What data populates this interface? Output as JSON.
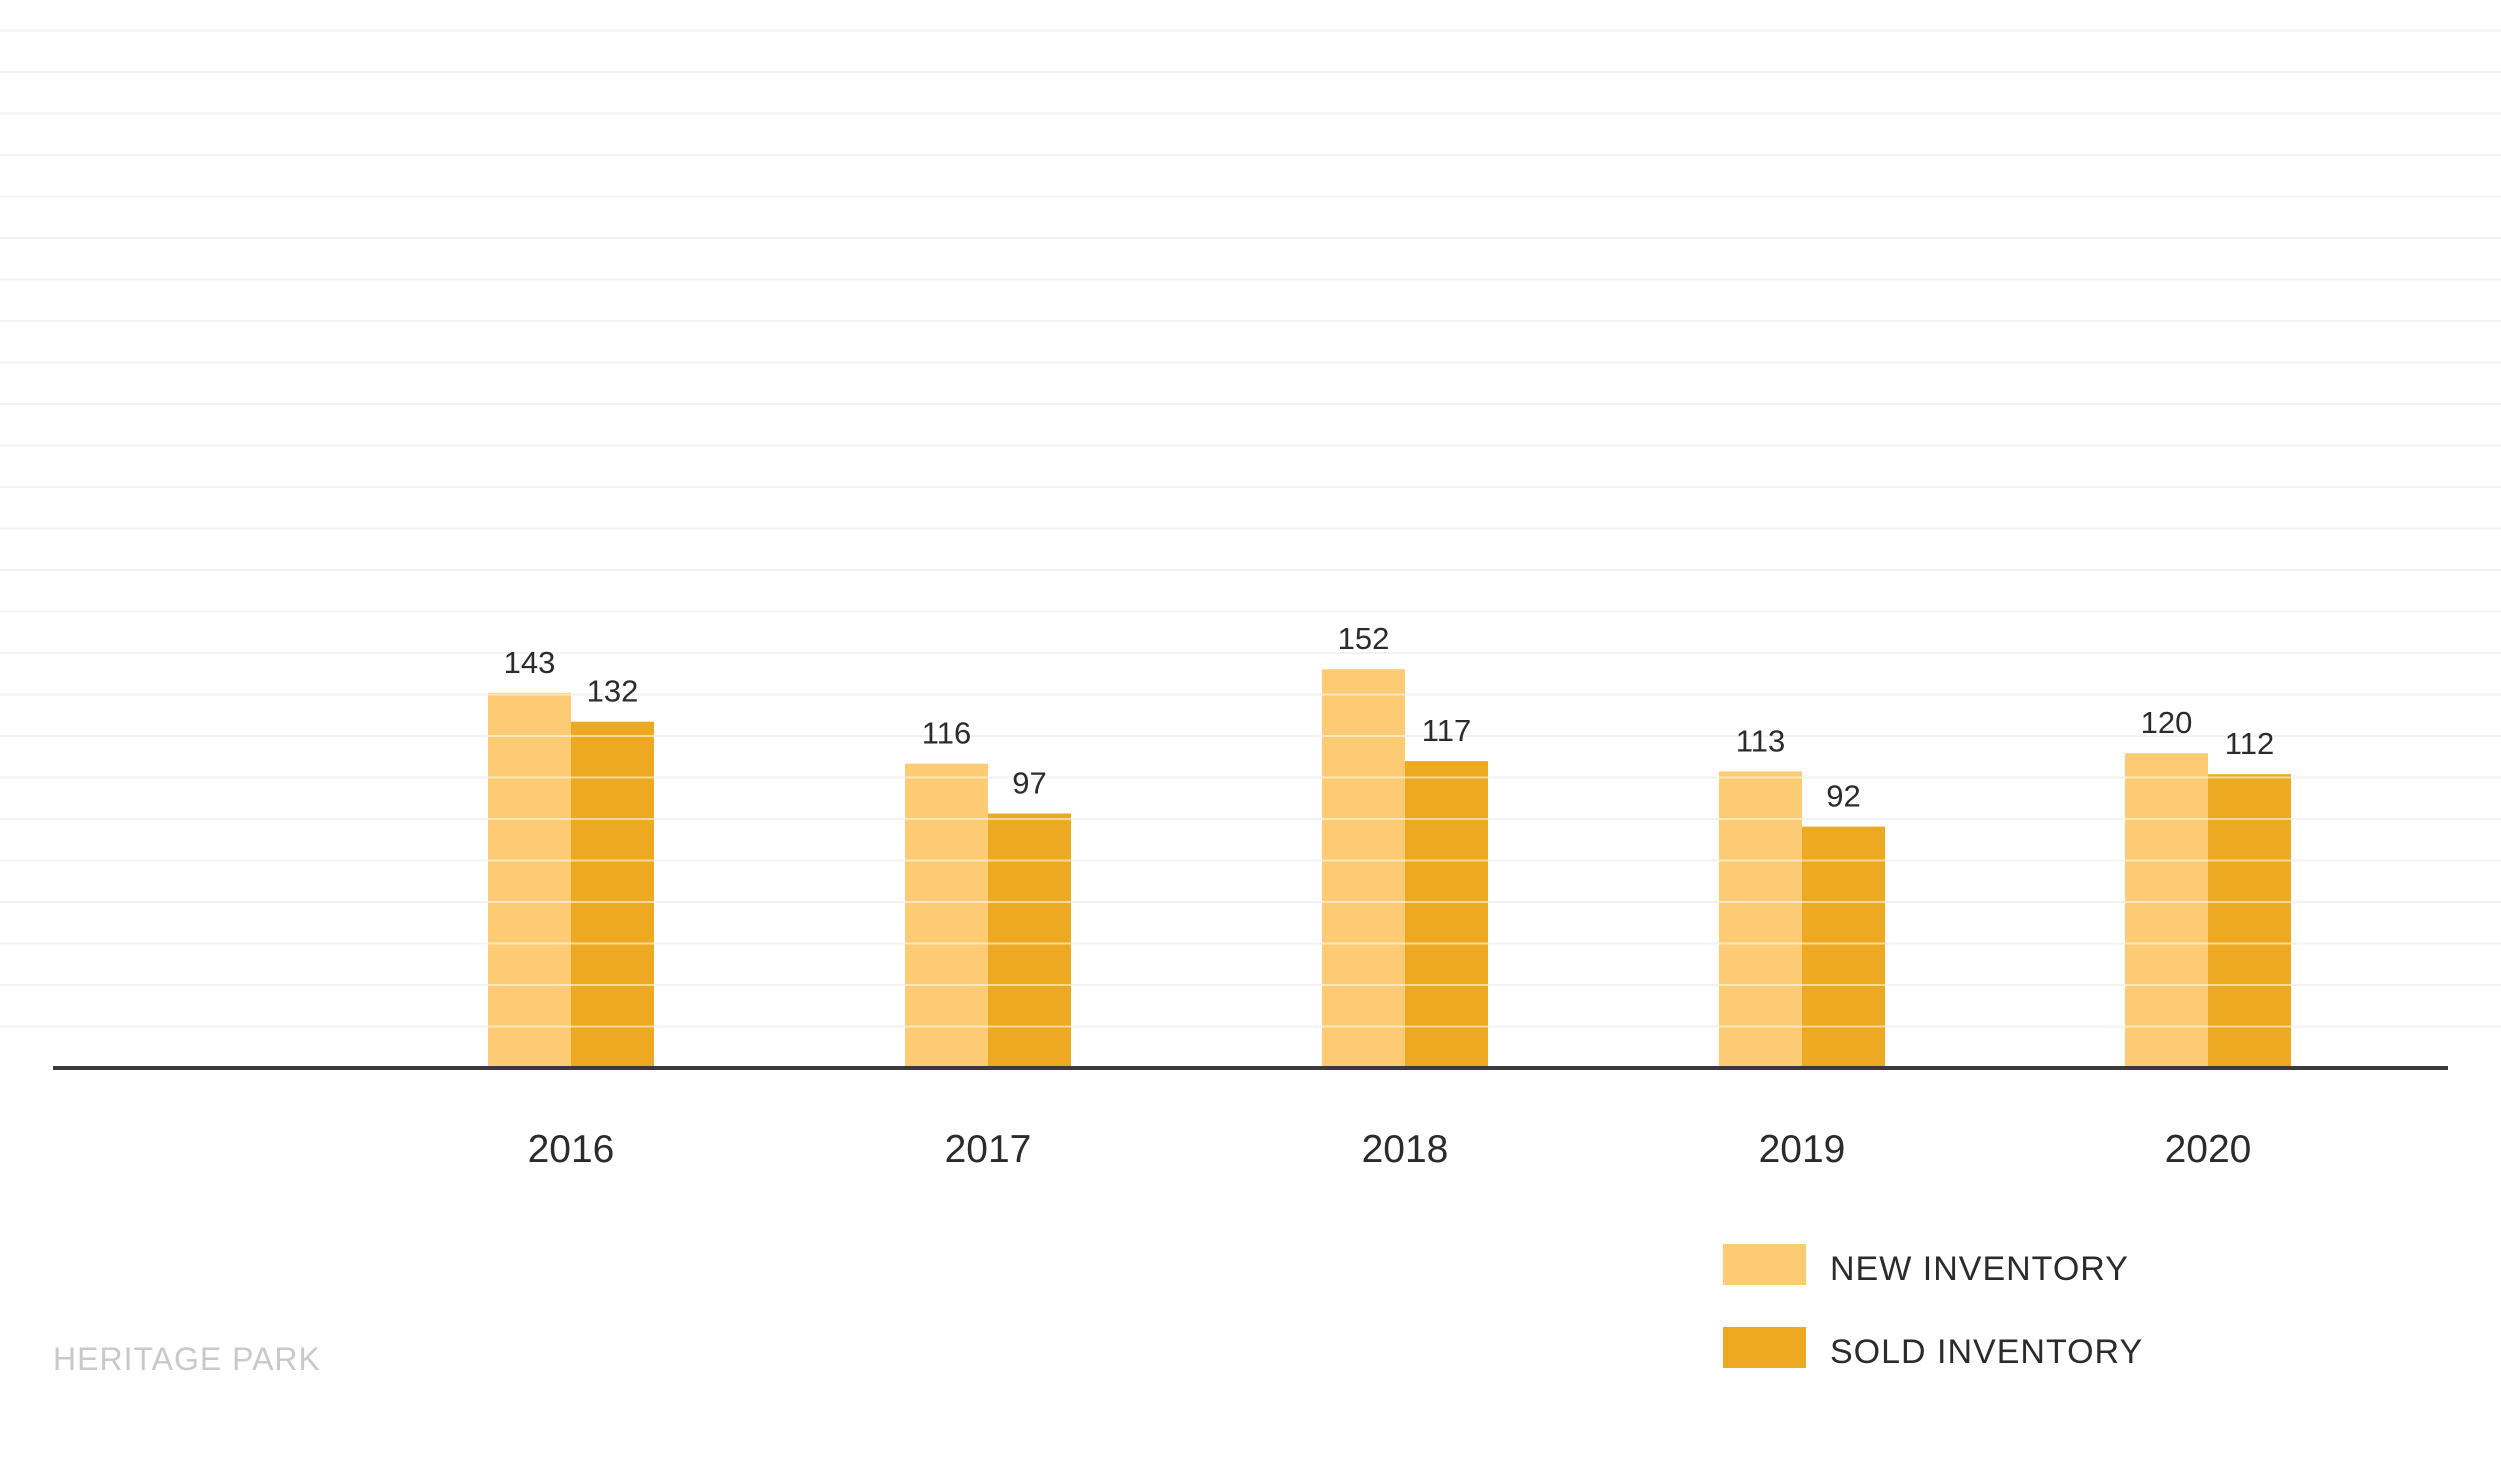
{
  "chart_data": {
    "type": "bar",
    "categories": [
      "2016",
      "2017",
      "2018",
      "2019",
      "2020"
    ],
    "series": [
      {
        "name": "NEW INVENTORY",
        "values": [
          143,
          116,
          152,
          113,
          120
        ],
        "color": "#FDCB73"
      },
      {
        "name": "SOLD INVENTORY",
        "values": [
          132,
          97,
          117,
          92,
          112
        ],
        "color": "#ECA921"
      }
    ],
    "title": "",
    "xlabel": "",
    "ylabel": "",
    "ylim": [
      0,
      240
    ],
    "grid": true,
    "legend_position": "bottom-right"
  },
  "footer": {
    "label": "HERITAGE PARK"
  },
  "colors": {
    "axis": "#3a3a3a",
    "grid": "#f2f2f2",
    "text": "#2b2b2b",
    "footer": "#c9c9c9"
  }
}
